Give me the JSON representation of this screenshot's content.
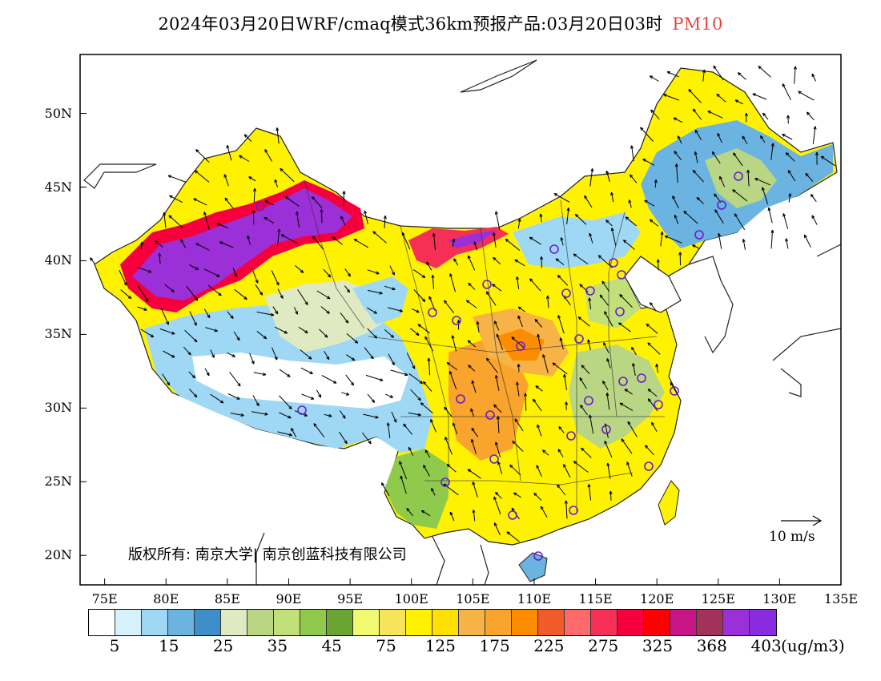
{
  "title": {
    "main": "2024年03月20日WRF/cmaq模式36km预报产品:03月20日03时",
    "pollutant": "PM10",
    "pollutant_color": "#e8453c"
  },
  "axes": {
    "lat_labels": [
      "50N",
      "45N",
      "40N",
      "35N",
      "30N",
      "25N",
      "20N"
    ],
    "lon_labels": [
      "75E",
      "80E",
      "85E",
      "90E",
      "95E",
      "100E",
      "105E",
      "110E",
      "115E",
      "120E",
      "125E",
      "130E",
      "135E"
    ],
    "lon_range": [
      73,
      135
    ],
    "lat_range": [
      18,
      54
    ]
  },
  "wind_scale": {
    "label": "10 m/s"
  },
  "copyright": "版权所有: 南京大学| 南京创蓝科技有限公司",
  "colorbar": {
    "colors": [
      "#ffffff",
      "#d6f0fc",
      "#9fd8f4",
      "#6bb3e0",
      "#3d8ec9",
      "#dfeac3",
      "#b9d684",
      "#c1e07a",
      "#8fca4c",
      "#6aa534",
      "#f0f970",
      "#f6e45a",
      "#fff200",
      "#ffe000",
      "#f7b345",
      "#f9a42c",
      "#fd8c00",
      "#f15b2a",
      "#fe6a6a",
      "#f52f56",
      "#f5003d",
      "#ff0000",
      "#c71585",
      "#a3325a",
      "#9b30d9",
      "#8a2be2"
    ],
    "labels": [
      "5",
      "15",
      "25",
      "35",
      "45",
      "75",
      "125",
      "175",
      "225",
      "275",
      "325",
      "368",
      "403"
    ],
    "unit": "(ug/m3)"
  },
  "icons": {
    "city_marker": "circle-marker-icon",
    "wind": "wind-arrow-icon"
  }
}
